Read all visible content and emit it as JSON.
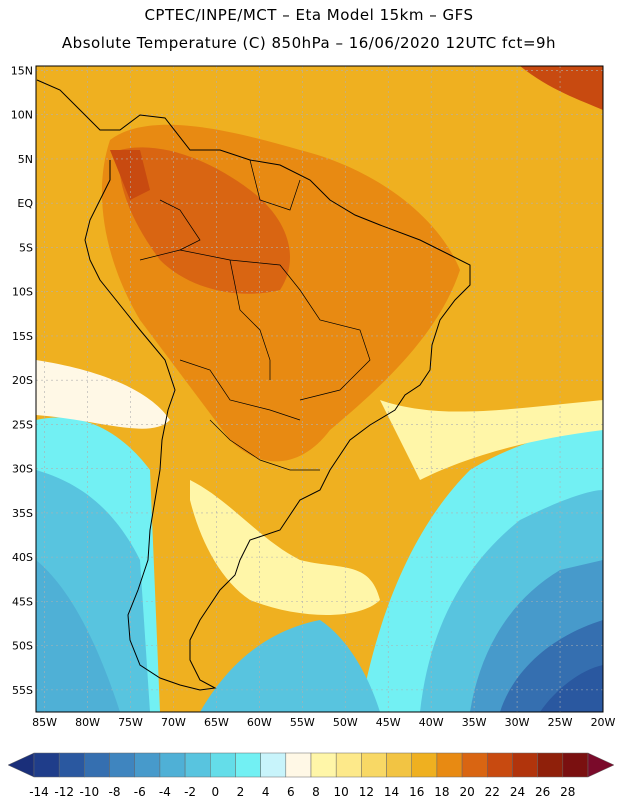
{
  "title_line1": "CPTEC/INPE/MCT –   Eta Model 15km – GFS",
  "title_line2": "Absolute Temperature (C) 850hPa – 16/06/2020 12UTC fct=9h",
  "map": {
    "lat_labels": [
      "15N",
      "10N",
      "5N",
      "EQ",
      "5S",
      "10S",
      "15S",
      "20S",
      "25S",
      "30S",
      "35S",
      "40S",
      "45S",
      "50S",
      "55S"
    ],
    "lon_labels": [
      "85W",
      "80W",
      "75W",
      "70W",
      "65W",
      "60W",
      "55W",
      "50W",
      "45W",
      "40W",
      "35W",
      "30W",
      "25W",
      "20W"
    ],
    "lat_range": [
      15.5,
      -57.5
    ],
    "lon_range": [
      -86,
      -20
    ],
    "gridlines": true
  },
  "colorbar": {
    "tick_labels": [
      "-14",
      "-12",
      "-10",
      "-8",
      "-6",
      "-4",
      "-2",
      "0",
      "2",
      "4",
      "6",
      "8",
      "10",
      "12",
      "14",
      "16",
      "18",
      "20",
      "22",
      "24",
      "26",
      "28"
    ],
    "colors": [
      "#1f3d8a",
      "#2a58a0",
      "#356fb0",
      "#3f85bf",
      "#479acb",
      "#4fb0d6",
      "#58c4df",
      "#64dde9",
      "#72f0f3",
      "#c8f4fb",
      "#fff8e6",
      "#fff6a8",
      "#fde98a",
      "#f8d865",
      "#f2c443",
      "#efb020",
      "#e88a12",
      "#d96512",
      "#c84a10",
      "#b1340c",
      "#8f200a",
      "#7a1010"
    ],
    "left_arrow_color": "#1a2f7a",
    "right_arrow_color": "#7a0a2a"
  }
}
